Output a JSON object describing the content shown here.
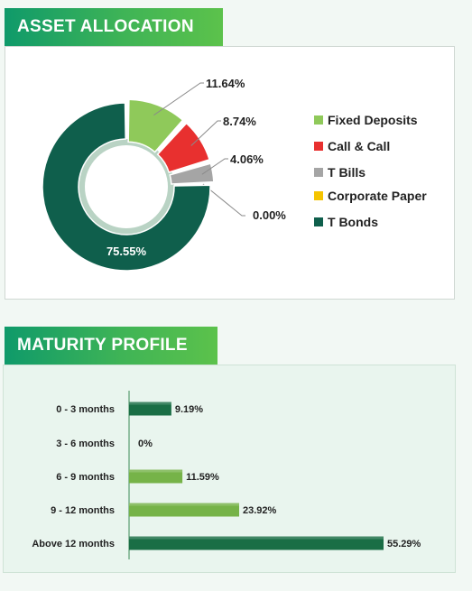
{
  "asset_allocation": {
    "title": "ASSET ALLOCATION"
  },
  "maturity_profile": {
    "title": "MATURITY PROFILE"
  },
  "chart_data": [
    {
      "type": "pie",
      "title": "ASSET ALLOCATION",
      "labels": [
        "Fixed Deposits",
        "Call & Call",
        "T Bills",
        "Corporate Paper",
        "T Bonds"
      ],
      "values": [
        11.64,
        8.74,
        4.06,
        0.0,
        75.55
      ],
      "value_labels": [
        "11.64%",
        "8.74%",
        "4.06%",
        "0.00%",
        "75.55%"
      ],
      "colors": [
        "#8fc95a",
        "#e8302f",
        "#a5a5a5",
        "#f5c400",
        "#0f5f4c"
      ],
      "legend_position": "right",
      "donut": true
    },
    {
      "type": "bar",
      "orientation": "horizontal",
      "title": "MATURITY PROFILE",
      "categories": [
        "0 - 3 months",
        "3 - 6 months",
        "6 - 9 months",
        "9 - 12 months",
        "Above 12 months"
      ],
      "values": [
        9.19,
        0,
        11.59,
        23.92,
        55.29
      ],
      "value_labels": [
        "9.19%",
        "0%",
        "11.59%",
        "23.92%",
        "55.29%"
      ],
      "bar_colors": [
        "#1a6e45",
        "#1a6e45",
        "#76b348",
        "#76b348",
        "#1a6e45"
      ],
      "xlim": [
        0,
        60
      ],
      "grid": false
    }
  ]
}
